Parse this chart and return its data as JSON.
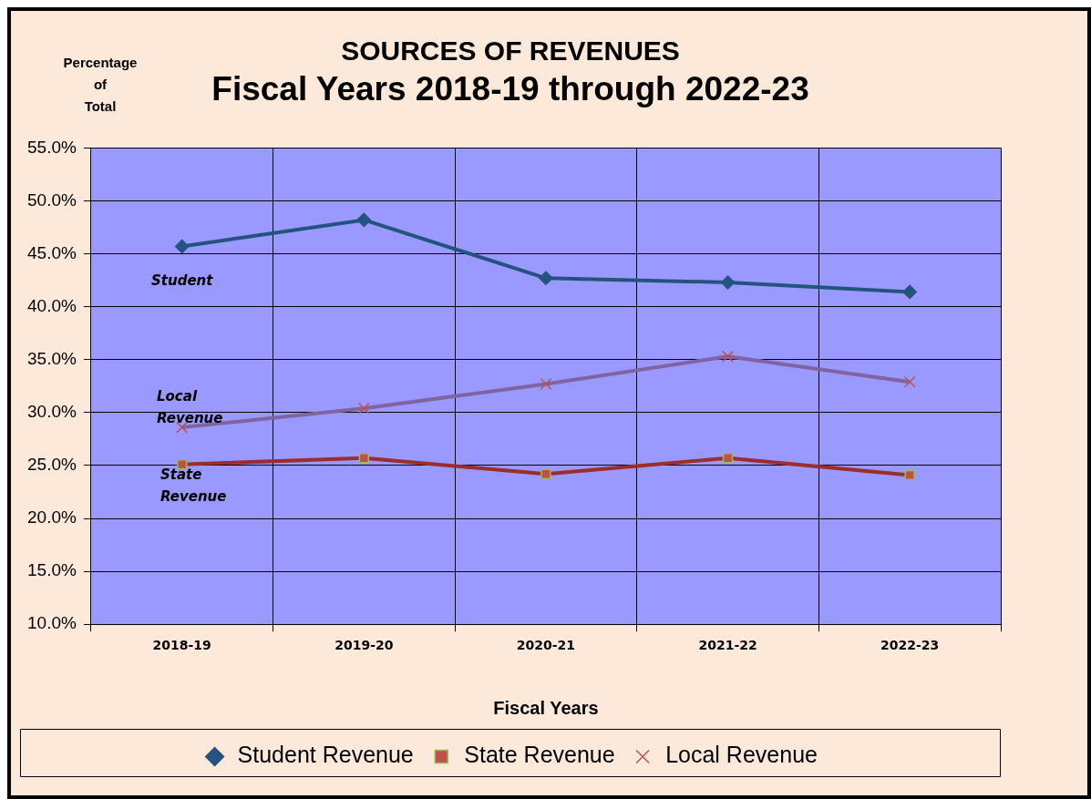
{
  "chart_data": {
    "type": "line",
    "title": "SOURCES OF REVENUES",
    "subtitle": "Fiscal Years 2018-19 through 2022-23",
    "xlabel": "Fiscal Years",
    "ylabel": "Percentage of Total",
    "categories": [
      "2018-19",
      "2019-20",
      "2020-21",
      "2021-22",
      "2022-23"
    ],
    "series": [
      {
        "name": "Student Revenue",
        "color": "#24547e",
        "marker": "diamond",
        "values": [
          45.7,
          48.2,
          42.7,
          42.3,
          41.4
        ]
      },
      {
        "name": "State Revenue",
        "color": "#9b2d2a",
        "marker": "square",
        "values": [
          25.1,
          25.7,
          24.2,
          25.7,
          24.1
        ]
      },
      {
        "name": "Local Revenue",
        "color": "#8064a2",
        "marker": "cross",
        "values": [
          28.6,
          30.4,
          32.7,
          35.3,
          32.9
        ]
      }
    ],
    "ylim": [
      10,
      55
    ],
    "yticks": [
      {
        "value": 10,
        "label": "10.0%"
      },
      {
        "value": 15,
        "label": "15.0%"
      },
      {
        "value": 20,
        "label": "20.0%"
      },
      {
        "value": 25,
        "label": "25.0%"
      },
      {
        "value": 30,
        "label": "30.0%"
      },
      {
        "value": 35,
        "label": "35.0%"
      },
      {
        "value": 40,
        "label": "40.0%"
      },
      {
        "value": 45,
        "label": "45.0%"
      },
      {
        "value": 50,
        "label": "50.0%"
      },
      {
        "value": 55,
        "label": "55.0%"
      }
    ],
    "annotations": [
      "Student",
      "Local Revenue",
      "State Revenue"
    ],
    "grid": true,
    "legend": "bottom"
  }
}
